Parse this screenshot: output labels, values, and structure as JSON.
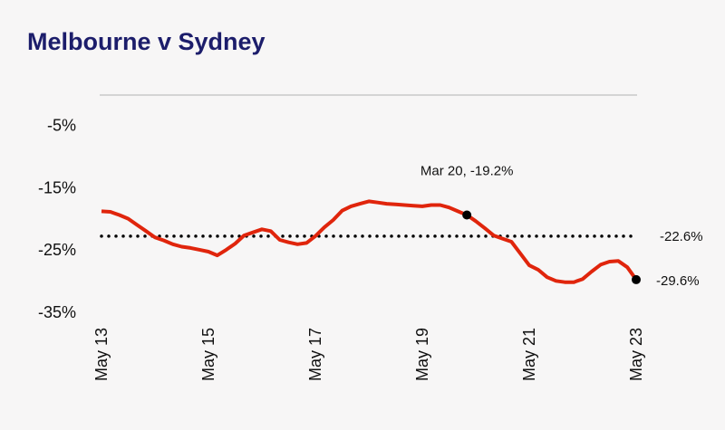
{
  "chart_data": {
    "type": "line",
    "title": "Melbourne v Sydney",
    "categories": [
      "May 13",
      null,
      null,
      null,
      null,
      null,
      null,
      null,
      null,
      null,
      null,
      null,
      "May 15",
      null,
      null,
      null,
      null,
      null,
      null,
      null,
      null,
      null,
      null,
      null,
      "May 17",
      null,
      null,
      null,
      null,
      null,
      null,
      null,
      null,
      null,
      null,
      null,
      "May 19",
      null,
      null,
      null,
      null,
      null,
      null,
      null,
      null,
      null,
      null,
      null,
      "May 21",
      null,
      null,
      null,
      null,
      null,
      null,
      null,
      null,
      null,
      null,
      null,
      "May 23"
    ],
    "series": [
      {
        "name": "Melbourne v Sydney",
        "color": "#e0250c",
        "values": [
          -18.6,
          -18.7,
          -19.2,
          -19.8,
          -20.8,
          -21.8,
          -22.8,
          -23.3,
          -23.9,
          -24.3,
          -24.5,
          -24.8,
          -25.1,
          -25.7,
          -24.8,
          -23.8,
          -22.5,
          -22.0,
          -21.5,
          -21.8,
          -23.2,
          -23.6,
          -23.9,
          -23.7,
          -22.6,
          -21.2,
          -20.0,
          -18.5,
          -17.8,
          -17.4,
          -17.0,
          -17.2,
          -17.4,
          -17.5,
          -17.6,
          -17.7,
          -17.8,
          -17.6,
          -17.6,
          -18.0,
          -18.6,
          -19.2,
          -20.2,
          -21.3,
          -22.5,
          -23.0,
          -23.5,
          -25.4,
          -27.3,
          -28.0,
          -29.2,
          -29.8,
          -30.0,
          -30.0,
          -29.5,
          -28.3,
          -27.2,
          -26.7,
          -26.6,
          -27.6,
          -29.6
        ],
        "value_labels": [
          null,
          null,
          null,
          null,
          null,
          null,
          null,
          null,
          null,
          null,
          null,
          null,
          null,
          null,
          null,
          null,
          null,
          null,
          null,
          null,
          null,
          null,
          null,
          null,
          null,
          null,
          null,
          null,
          null,
          null,
          null,
          null,
          null,
          null,
          null,
          null,
          null,
          null,
          null,
          null,
          null,
          "Mar 20, -19.2%",
          null,
          null,
          null,
          null,
          null,
          null,
          null,
          null,
          null,
          null,
          null,
          null,
          null,
          null,
          null,
          null,
          null,
          null,
          "-29.6%"
        ]
      }
    ],
    "reference_line": {
      "value": -22.6,
      "label": "-22.6%",
      "color": "#000000"
    },
    "ylim": [
      -35,
      0
    ],
    "yticks": [
      {
        "value": -5,
        "label": "-5%"
      },
      {
        "value": -15,
        "label": "-15%"
      },
      {
        "value": -25,
        "label": "-25%"
      },
      {
        "value": -35,
        "label": "-35%"
      }
    ],
    "grid": false
  }
}
